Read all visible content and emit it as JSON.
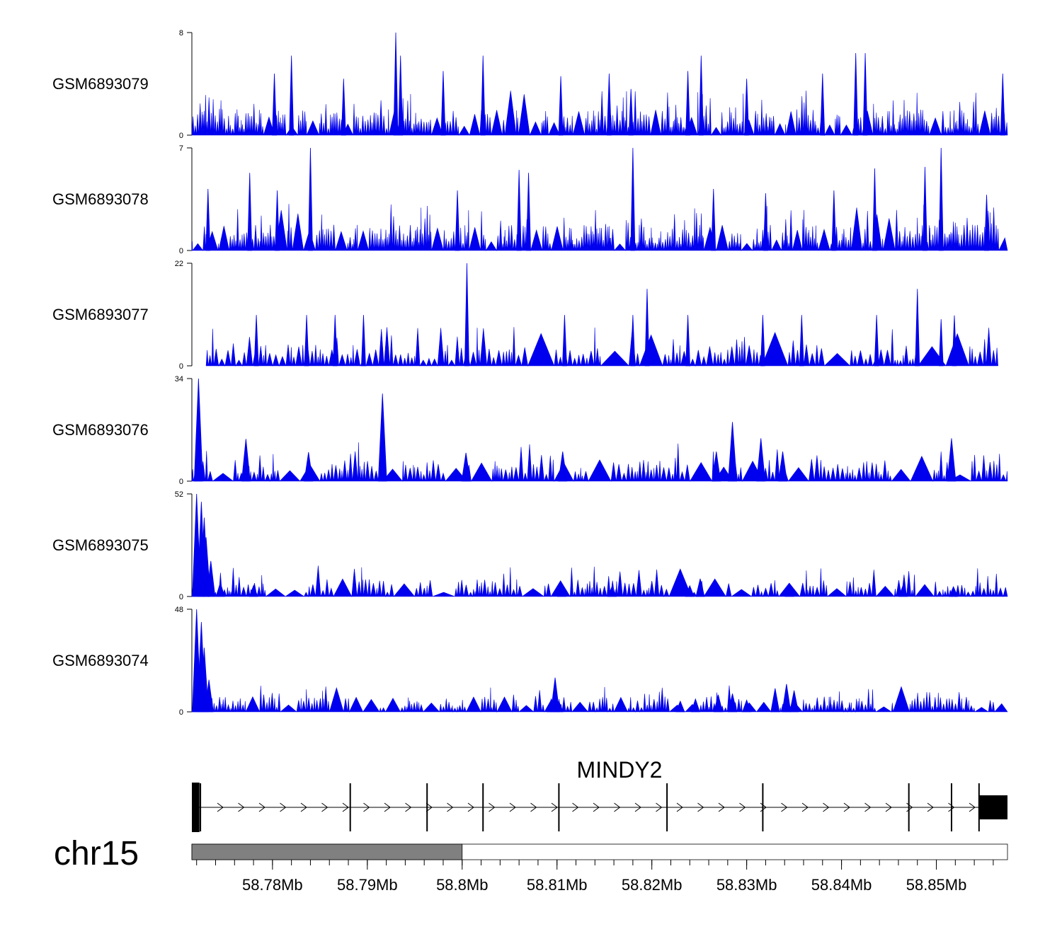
{
  "chart_data": {
    "type": "area",
    "color": "#0000ee",
    "chromosome": "chr15",
    "gene": "MINDY2",
    "x_range_mb": [
      58.7715,
      58.8575
    ],
    "ideogram_highlight_mb": [
      58.7715,
      58.8
    ],
    "x_ticks": [
      "58.78Mb",
      "58.79Mb",
      "58.8Mb",
      "58.81Mb",
      "58.82Mb",
      "58.83Mb",
      "58.84Mb",
      "58.85Mb"
    ],
    "x_tick_values": [
      58.78,
      58.79,
      58.8,
      58.81,
      58.82,
      58.83,
      58.84,
      58.85
    ],
    "exons_mb": [
      58.7724,
      58.7882,
      58.7963,
      58.8022,
      58.8102,
      58.8216,
      58.8317,
      58.8471,
      58.8516,
      58.8545
    ],
    "utr_mb": [
      [
        58.7715,
        58.7723
      ],
      [
        58.8545,
        58.8575
      ]
    ],
    "tracks": [
      {
        "name": "GSM6893079",
        "ymax": 8,
        "peaks": [
          [
            58.793,
            8
          ],
          [
            58.7935,
            6.2
          ],
          [
            58.8022,
            6.2
          ],
          [
            58.8104,
            4.6
          ],
          [
            58.8252,
            6.2
          ],
          [
            58.8178,
            3.6
          ],
          [
            58.782,
            6.2
          ],
          [
            58.7802,
            4.8
          ],
          [
            58.7875,
            4.4
          ],
          [
            58.798,
            5.0
          ],
          [
            58.8155,
            4.8
          ],
          [
            58.8238,
            5.0
          ],
          [
            58.8415,
            6.4
          ],
          [
            58.8425,
            6.4
          ],
          [
            58.857,
            4.8
          ],
          [
            58.83,
            4.4
          ],
          [
            58.838,
            4.8
          ]
        ]
      },
      {
        "name": "GSM6893078",
        "ymax": 7,
        "peaks": [
          [
            58.784,
            7
          ],
          [
            58.818,
            7
          ],
          [
            58.8505,
            7
          ],
          [
            58.7776,
            5.3
          ],
          [
            58.807,
            5.3
          ],
          [
            58.806,
            5.5
          ],
          [
            58.8435,
            5.6
          ],
          [
            58.8488,
            5.7
          ],
          [
            58.8265,
            4.2
          ],
          [
            58.7732,
            4.2
          ],
          [
            58.7805,
            4.1
          ],
          [
            58.7995,
            4.1
          ],
          [
            58.8392,
            4.1
          ],
          [
            58.8553,
            3.8
          ],
          [
            58.832,
            3.9
          ]
        ]
      },
      {
        "name": "GSM6893077",
        "ymax": 22,
        "peaks": [
          [
            58.8005,
            22
          ],
          [
            58.8195,
            16.5
          ],
          [
            58.848,
            16.5
          ],
          [
            58.8358,
            10.9
          ],
          [
            58.8317,
            10.9
          ],
          [
            58.8437,
            10.9
          ],
          [
            58.8238,
            10.9
          ],
          [
            58.818,
            10.9
          ],
          [
            58.8108,
            10.9
          ],
          [
            58.7783,
            10.9
          ],
          [
            58.7836,
            10.9
          ],
          [
            58.7866,
            10.9
          ],
          [
            58.7896,
            10.9
          ],
          [
            58.8519,
            10.8
          ],
          [
            58.8505,
            10.0
          ]
        ]
      },
      {
        "name": "GSM6893076",
        "ymax": 34,
        "peaks": [
          [
            58.7722,
            34
          ],
          [
            58.7916,
            29
          ],
          [
            58.8285,
            19.6
          ],
          [
            58.8516,
            14.2
          ],
          [
            58.8315,
            14.2
          ],
          [
            58.7772,
            14
          ],
          [
            58.8268,
            9.8
          ],
          [
            58.8106,
            9.8
          ],
          [
            58.8338,
            9.8
          ],
          [
            58.7838,
            9.6
          ],
          [
            58.8004,
            9.4
          ]
        ]
      },
      {
        "name": "GSM6893075",
        "ymax": 52,
        "peaks": [
          [
            58.772,
            52
          ],
          [
            58.7725,
            48
          ],
          [
            58.7728,
            40
          ],
          [
            58.773,
            30
          ],
          [
            58.7735,
            18
          ],
          [
            58.8251,
            9
          ],
          [
            58.824,
            5.5
          ],
          [
            58.8105,
            5.8
          ],
          [
            58.8465,
            5.8
          ],
          [
            58.7745,
            7
          ],
          [
            58.778,
            5.5
          ],
          [
            58.8158,
            5.0
          ],
          [
            58.8345,
            5.0
          ],
          [
            58.8518,
            5.0
          ]
        ]
      },
      {
        "name": "GSM6893074",
        "ymax": 48,
        "peaks": [
          [
            58.772,
            48
          ],
          [
            58.7725,
            42
          ],
          [
            58.7728,
            30
          ],
          [
            58.7733,
            15
          ],
          [
            58.8098,
            16
          ],
          [
            58.8342,
            13
          ],
          [
            58.833,
            11
          ],
          [
            58.835,
            10
          ],
          [
            58.8285,
            8.5
          ],
          [
            58.827,
            8
          ],
          [
            58.8094,
            6
          ],
          [
            58.8246,
            6
          ],
          [
            58.83,
            5.5
          ],
          [
            58.823,
            5
          ],
          [
            58.8102,
            5
          ]
        ]
      }
    ]
  }
}
